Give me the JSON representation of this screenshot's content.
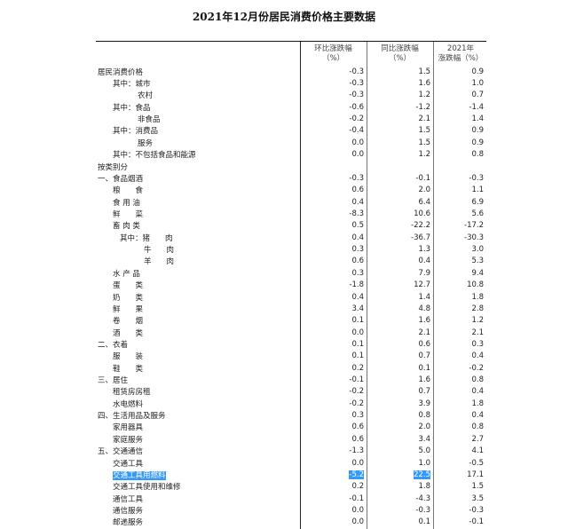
{
  "title": "2021年12月份居民消费价格主要数据",
  "headers": {
    "mom": "环比涨跌幅\n（%）",
    "yoy": "同比涨跌幅\n（%）",
    "ytd": "2021年\n涨跌幅（%）"
  },
  "rows": [
    {
      "label": "居民消费价格",
      "level": 0,
      "mom": "-0.3",
      "yoy": "1.5",
      "ytd": "0.9"
    },
    {
      "label": "其中：城市",
      "level": 1,
      "mom": "-0.3",
      "yoy": "1.6",
      "ytd": "1.0"
    },
    {
      "label": "农村",
      "level": 2,
      "mom": "-0.3",
      "yoy": "1.2",
      "ytd": "0.7"
    },
    {
      "label": "其中：食品",
      "level": 1,
      "mom": "-0.6",
      "yoy": "-1.2",
      "ytd": "-1.4"
    },
    {
      "label": "非食品",
      "level": 2,
      "mom": "-0.2",
      "yoy": "2.1",
      "ytd": "1.4"
    },
    {
      "label": "其中：消费品",
      "level": 1,
      "mom": "-0.4",
      "yoy": "1.5",
      "ytd": "0.9"
    },
    {
      "label": "服务",
      "level": 2,
      "mom": "0.0",
      "yoy": "1.5",
      "ytd": "0.9"
    },
    {
      "label": "其中：不包括食品和能源",
      "level": 1,
      "mom": "0.0",
      "yoy": "1.2",
      "ytd": "0.8"
    },
    {
      "label": "按类别分",
      "level": 0,
      "mom": "",
      "yoy": "",
      "ytd": ""
    },
    {
      "label": "一、食品烟酒",
      "level": 0,
      "mom": "-0.3",
      "yoy": "-0.1",
      "ytd": "-0.3"
    },
    {
      "label": "粮　　食",
      "level": 1,
      "mom": "0.6",
      "yoy": "2.0",
      "ytd": "1.1"
    },
    {
      "label": "食 用 油",
      "level": 1,
      "mom": "0.4",
      "yoy": "6.4",
      "ytd": "6.9"
    },
    {
      "label": "鲜　　菜",
      "level": 1,
      "mom": "-8.3",
      "yoy": "10.6",
      "ytd": "5.6"
    },
    {
      "label": "畜 肉 类",
      "level": 1,
      "mom": "0.5",
      "yoy": "-22.2",
      "ytd": "-17.2"
    },
    {
      "label": "其中：猪　　肉",
      "level": 3,
      "mom": "0.4",
      "yoy": "-36.7",
      "ytd": "-30.3"
    },
    {
      "label": "牛　　肉",
      "level": 4,
      "mom": "0.3",
      "yoy": "1.3",
      "ytd": "3.0"
    },
    {
      "label": "羊　　肉",
      "level": 4,
      "mom": "0.6",
      "yoy": "0.4",
      "ytd": "5.3"
    },
    {
      "label": "水 产 品",
      "level": 1,
      "mom": "0.3",
      "yoy": "7.9",
      "ytd": "9.4"
    },
    {
      "label": "蛋　　类",
      "level": 1,
      "mom": "-1.8",
      "yoy": "12.7",
      "ytd": "10.8"
    },
    {
      "label": "奶　　类",
      "level": 1,
      "mom": "0.4",
      "yoy": "1.4",
      "ytd": "1.8"
    },
    {
      "label": "鲜　　果",
      "level": 1,
      "mom": "3.4",
      "yoy": "4.8",
      "ytd": "2.8"
    },
    {
      "label": "卷　　烟",
      "level": 1,
      "mom": "0.1",
      "yoy": "1.6",
      "ytd": "1.2"
    },
    {
      "label": "酒　　类",
      "level": 1,
      "mom": "0.0",
      "yoy": "2.1",
      "ytd": "2.1"
    },
    {
      "label": "二、衣着",
      "level": 0,
      "mom": "0.1",
      "yoy": "0.6",
      "ytd": "0.3"
    },
    {
      "label": "服　　装",
      "level": 1,
      "mom": "0.1",
      "yoy": "0.7",
      "ytd": "0.4"
    },
    {
      "label": "鞋　　类",
      "level": 1,
      "mom": "0.2",
      "yoy": "0.1",
      "ytd": "-0.2"
    },
    {
      "label": "三、居住",
      "level": 0,
      "mom": "-0.1",
      "yoy": "1.6",
      "ytd": "0.8"
    },
    {
      "label": "租赁房房租",
      "level": 1,
      "mom": "-0.2",
      "yoy": "0.7",
      "ytd": "0.4"
    },
    {
      "label": "水电燃料",
      "level": 1,
      "mom": "-0.2",
      "yoy": "3.9",
      "ytd": "1.8"
    },
    {
      "label": "四、生活用品及服务",
      "level": 0,
      "mom": "0.3",
      "yoy": "0.8",
      "ytd": "0.4"
    },
    {
      "label": "家用器具",
      "level": 1,
      "mom": "0.6",
      "yoy": "2.0",
      "ytd": "0.8"
    },
    {
      "label": "家庭服务",
      "level": 1,
      "mom": "0.6",
      "yoy": "3.4",
      "ytd": "2.7"
    },
    {
      "label": "五、交通通信",
      "level": 0,
      "mom": "-1.3",
      "yoy": "5.0",
      "ytd": "4.1"
    },
    {
      "label": "交通工具",
      "level": 1,
      "mom": "0.0",
      "yoy": "1.0",
      "ytd": "-0.5"
    },
    {
      "label": "交通工具用燃料",
      "level": 1,
      "mom": "-5.2",
      "yoy": "22.5",
      "ytd": "17.1",
      "selected": true
    },
    {
      "label": "交通工具使用和维修",
      "level": 1,
      "mom": "0.2",
      "yoy": "1.8",
      "ytd": "1.5"
    },
    {
      "label": "通信工具",
      "level": 1,
      "mom": "-0.1",
      "yoy": "-4.3",
      "ytd": "3.5"
    },
    {
      "label": "通信服务",
      "level": 1,
      "mom": "0.0",
      "yoy": "-0.3",
      "ytd": "-0.3"
    },
    {
      "label": "邮递服务",
      "level": 1,
      "mom": "0.0",
      "yoy": "0.1",
      "ytd": "-0.1"
    }
  ],
  "colors": {
    "selection": "#3399ff"
  }
}
